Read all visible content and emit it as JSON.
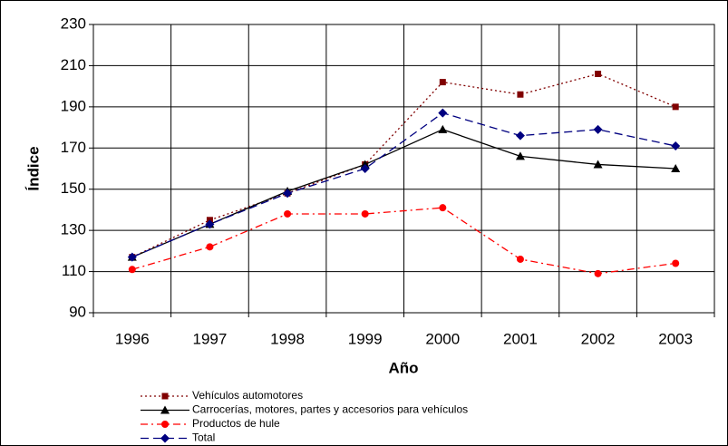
{
  "chart_data": {
    "type": "line",
    "x_label": "Año",
    "y_label": "Índice",
    "categories": [
      "1996",
      "1997",
      "1998",
      "1999",
      "2000",
      "2001",
      "2002",
      "2003"
    ],
    "series": [
      {
        "name": "Vehículos automotores",
        "color": "#800000",
        "line_style": "dotted",
        "marker": "square",
        "values": [
          117,
          135,
          148,
          162,
          202,
          196,
          206,
          190
        ]
      },
      {
        "name": "Carrocerías, motores, partes y accesorios para vehículos",
        "color": "#000000",
        "line_style": "solid",
        "marker": "triangle",
        "values": [
          117,
          133,
          149,
          162,
          179,
          166,
          162,
          160
        ]
      },
      {
        "name": "Productos de hule",
        "color": "#ff0000",
        "line_style": "dashdot",
        "marker": "circle",
        "values": [
          111,
          122,
          138,
          138,
          141,
          116,
          109,
          114
        ]
      },
      {
        "name": "Total",
        "color": "#000080",
        "line_style": "dashed",
        "marker": "diamond",
        "values": [
          117,
          133,
          148,
          160,
          187,
          176,
          179,
          171
        ]
      }
    ],
    "ylim": [
      90,
      230
    ],
    "yticks": [
      90,
      110,
      130,
      150,
      170,
      190,
      210,
      230
    ],
    "grid": true
  }
}
